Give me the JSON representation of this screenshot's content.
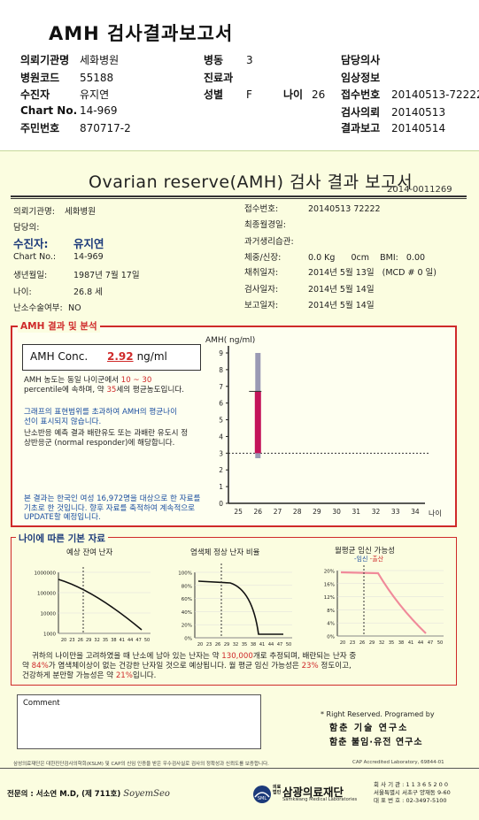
{
  "top": {
    "title": "AMH 검사결과보고서",
    "fields": [
      {
        "k": "의뢰기관명",
        "v": "세화병원"
      },
      {
        "k": "병동",
        "v": "3"
      },
      {
        "k": "담당의사",
        "v": ""
      },
      {
        "k": "병원코드",
        "v": "55188"
      },
      {
        "k": "진료과",
        "v": ""
      },
      {
        "k": "임상정보",
        "v": ""
      },
      {
        "k": "수진자",
        "v": "유지연"
      },
      {
        "k": "성별",
        "v": "F"
      },
      {
        "k": "나이",
        "v": "26"
      },
      {
        "k": "접수번호",
        "v": "20140513-72222"
      },
      {
        "k": "Chart No.",
        "v": "14-969"
      },
      {
        "k": "검사의뢰",
        "v": "20140513"
      },
      {
        "k": "주민번호",
        "v": "870717-2"
      },
      {
        "k": "결과보고",
        "v": "20140514"
      }
    ]
  },
  "report": {
    "title": "Ovarian reserve(AMH) 검사 결과 보고서",
    "doc_no": "2014-0011269",
    "left": [
      {
        "k": "의뢰기관명:",
        "v": "세화병원"
      },
      {
        "k": "담당의:",
        "v": ""
      },
      {
        "k": "수진자:",
        "v": "유지연"
      },
      {
        "k": "Chart No.:",
        "v": "14-969"
      },
      {
        "k": "생년월일:",
        "v": "1987년 7월 17일"
      },
      {
        "k": "나이:",
        "v": "26.8 세"
      },
      {
        "k": "난소수술여부:",
        "v": "NO"
      }
    ],
    "right": [
      {
        "k": "접수번호:",
        "v": "20140513 72222"
      },
      {
        "k": "최종월경일:",
        "v": ""
      },
      {
        "k": "과거생리습관:",
        "v": ""
      },
      {
        "k": "체중/신장:",
        "v": "0.0 Kg      0cm    BMI:   0.00"
      },
      {
        "k": "채취일자:",
        "v": "2014년 5월 13일   (MCD # 0 일)"
      },
      {
        "k": "검사일자:",
        "v": "2014년 5월 14일"
      },
      {
        "k": "보고일자:",
        "v": "2014년 5월 14일"
      }
    ]
  },
  "amh": {
    "section_label": "AMH 결과 및 분석",
    "conc_label": "AMH Conc.",
    "conc_value": "2.92",
    "conc_unit": "ng/ml",
    "p1a": "AMH 농도는 동일 나이군에서",
    "p1_range": "10 ~ 30",
    "p1b": "percentile에 속하며, 약",
    "p1_age": "35",
    "p1c": "세의 평균농도입니다.",
    "p2": "그래프의 표현범위를 초과하여 AMH의 평균나이선이 표시되지 않습니다.",
    "p3": "난소반응 예측 결과 배란유도 또는 과배란 유도시 정상반응군 (normal responder)에 해당합니다.",
    "p4": "본 결과는 한국인 여성 16,972명을 대상으로 한 자료를 기초로 한 것입니다. 향후 자료를 축적하여 계속적으로 UPDATE할 예정입니다."
  },
  "chart_data": [
    {
      "type": "bar",
      "title": "",
      "ylabel": "AMH( ng/ml)",
      "xlabel": "나이",
      "categories": [
        "25",
        "26",
        "27",
        "28",
        "29",
        "30",
        "31",
        "32",
        "33",
        "34"
      ],
      "ylim": [
        0,
        9
      ],
      "yticks": [
        "0",
        "1",
        "2",
        "3",
        "4",
        "5",
        "6",
        "7",
        "8",
        "9"
      ],
      "range_bar": {
        "x": "26",
        "low": 3.0,
        "high": 6.7
      },
      "range_bar_outer": {
        "x": "26",
        "low": 2.7,
        "high": 9.0
      },
      "patient_value": 2.92,
      "reference_line": 3.0
    },
    {
      "type": "line",
      "title": "예상 잔여 난자",
      "x": [
        "20",
        "23",
        "26",
        "29",
        "32",
        "35",
        "38",
        "41",
        "44",
        "47",
        "50"
      ],
      "yticks": [
        "1000000",
        "100000",
        "10000",
        "1000"
      ],
      "scale": "log"
    },
    {
      "type": "line",
      "title": "염색체 정상 난자 비율",
      "x": [
        "20",
        "23",
        "26",
        "29",
        "32",
        "35",
        "38",
        "41",
        "44",
        "47",
        "50"
      ],
      "yticks": [
        "100%",
        "80%",
        "60%",
        "40%",
        "20%",
        "0%"
      ]
    },
    {
      "type": "line",
      "title": "월평균 임신 가능성",
      "legend": [
        "임신",
        "출산"
      ],
      "x": [
        "20",
        "23",
        "26",
        "29",
        "32",
        "35",
        "38",
        "41",
        "44",
        "47",
        "50"
      ],
      "yticks": [
        "20%",
        "16%",
        "12%",
        "8%",
        "4%",
        "0%"
      ]
    }
  ],
  "basic": {
    "section_label": "나이에 따른 기본 자료",
    "s1": "귀하의 나이만을 고려하였을 때 난소에 남아 있는 난자는 약",
    "eggs": "130,000",
    "s2": "개로 추정되며, 배란되는 난자 중",
    "s3": "약",
    "pct1": "84%",
    "s4": "가 염색체이상이 없는 건강한 난자일 것으로 예상됩니다. 월 평균 임신 가능성은",
    "pct2": "23%",
    "s5": "정도이고,",
    "s6": "건강하게 분만할 가능성은 약",
    "pct3": "21%",
    "s7": "입니다."
  },
  "footer": {
    "comment": "Comment",
    "rights": "* Right Reserved. Programed by",
    "lab1": "함춘 기술 연구소",
    "lab2": "함춘 불임·유전 연구소",
    "note": "삼성의료재단은 대한진단검사의학회(KSLM) 및 CAP의 신임 인증을 받은 우수검사실로 검사의 정확성과 신뢰도를 보증합니다.",
    "cap": "CAP Accredited Laboratory, 69844-01",
    "doctor": "전문의 : 서소연 M.D, (제 711호)",
    "signature": "SoyemSeo",
    "org_prefix": "의료 법인",
    "org_ko": "삼광의료재단",
    "org_en": "Samkwang Medical Laboratories",
    "contact": [
      "회 사 기 관 : 1 1 3 6 5 2 0 0",
      "서울특별시 서초구 양재동 9-60",
      "대 표 번 호 : 02-3497-5100"
    ]
  }
}
